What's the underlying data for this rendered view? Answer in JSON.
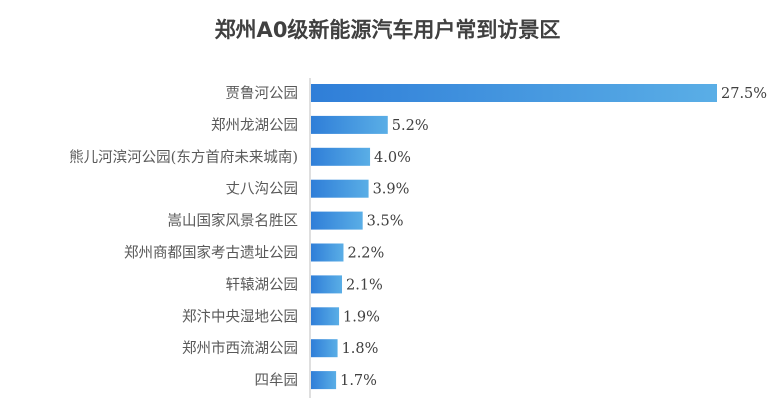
{
  "chart_data": {
    "type": "bar",
    "orientation": "horizontal",
    "title": "郑州A0级新能源汽车用户常到访景区",
    "categories": [
      "贾鲁河公园",
      "郑州龙湖公园",
      "熊儿河滨河公园(东方首府未来城南)",
      "丈八沟公园",
      "嵩山国家风景名胜区",
      "郑州商都国家考古遗址公园",
      "轩辕湖公园",
      "郑汴中央湿地公园",
      "郑州市西流湖公园",
      "四牟园"
    ],
    "values": [
      27.5,
      5.2,
      4.0,
      3.9,
      3.5,
      2.2,
      2.1,
      1.9,
      1.8,
      1.7
    ],
    "value_labels": [
      "27.5%",
      "5.2%",
      "4.0%",
      "3.9%",
      "3.5%",
      "2.2%",
      "2.1%",
      "1.9%",
      "1.8%",
      "1.7%"
    ],
    "unit": "%",
    "xlim": [
      0,
      27.5
    ],
    "grid": false,
    "legend": "none",
    "colors": {
      "bar_left": "#2f7ed8",
      "bar_right": "#5aaee6",
      "axis": "#bfbfbf"
    }
  }
}
